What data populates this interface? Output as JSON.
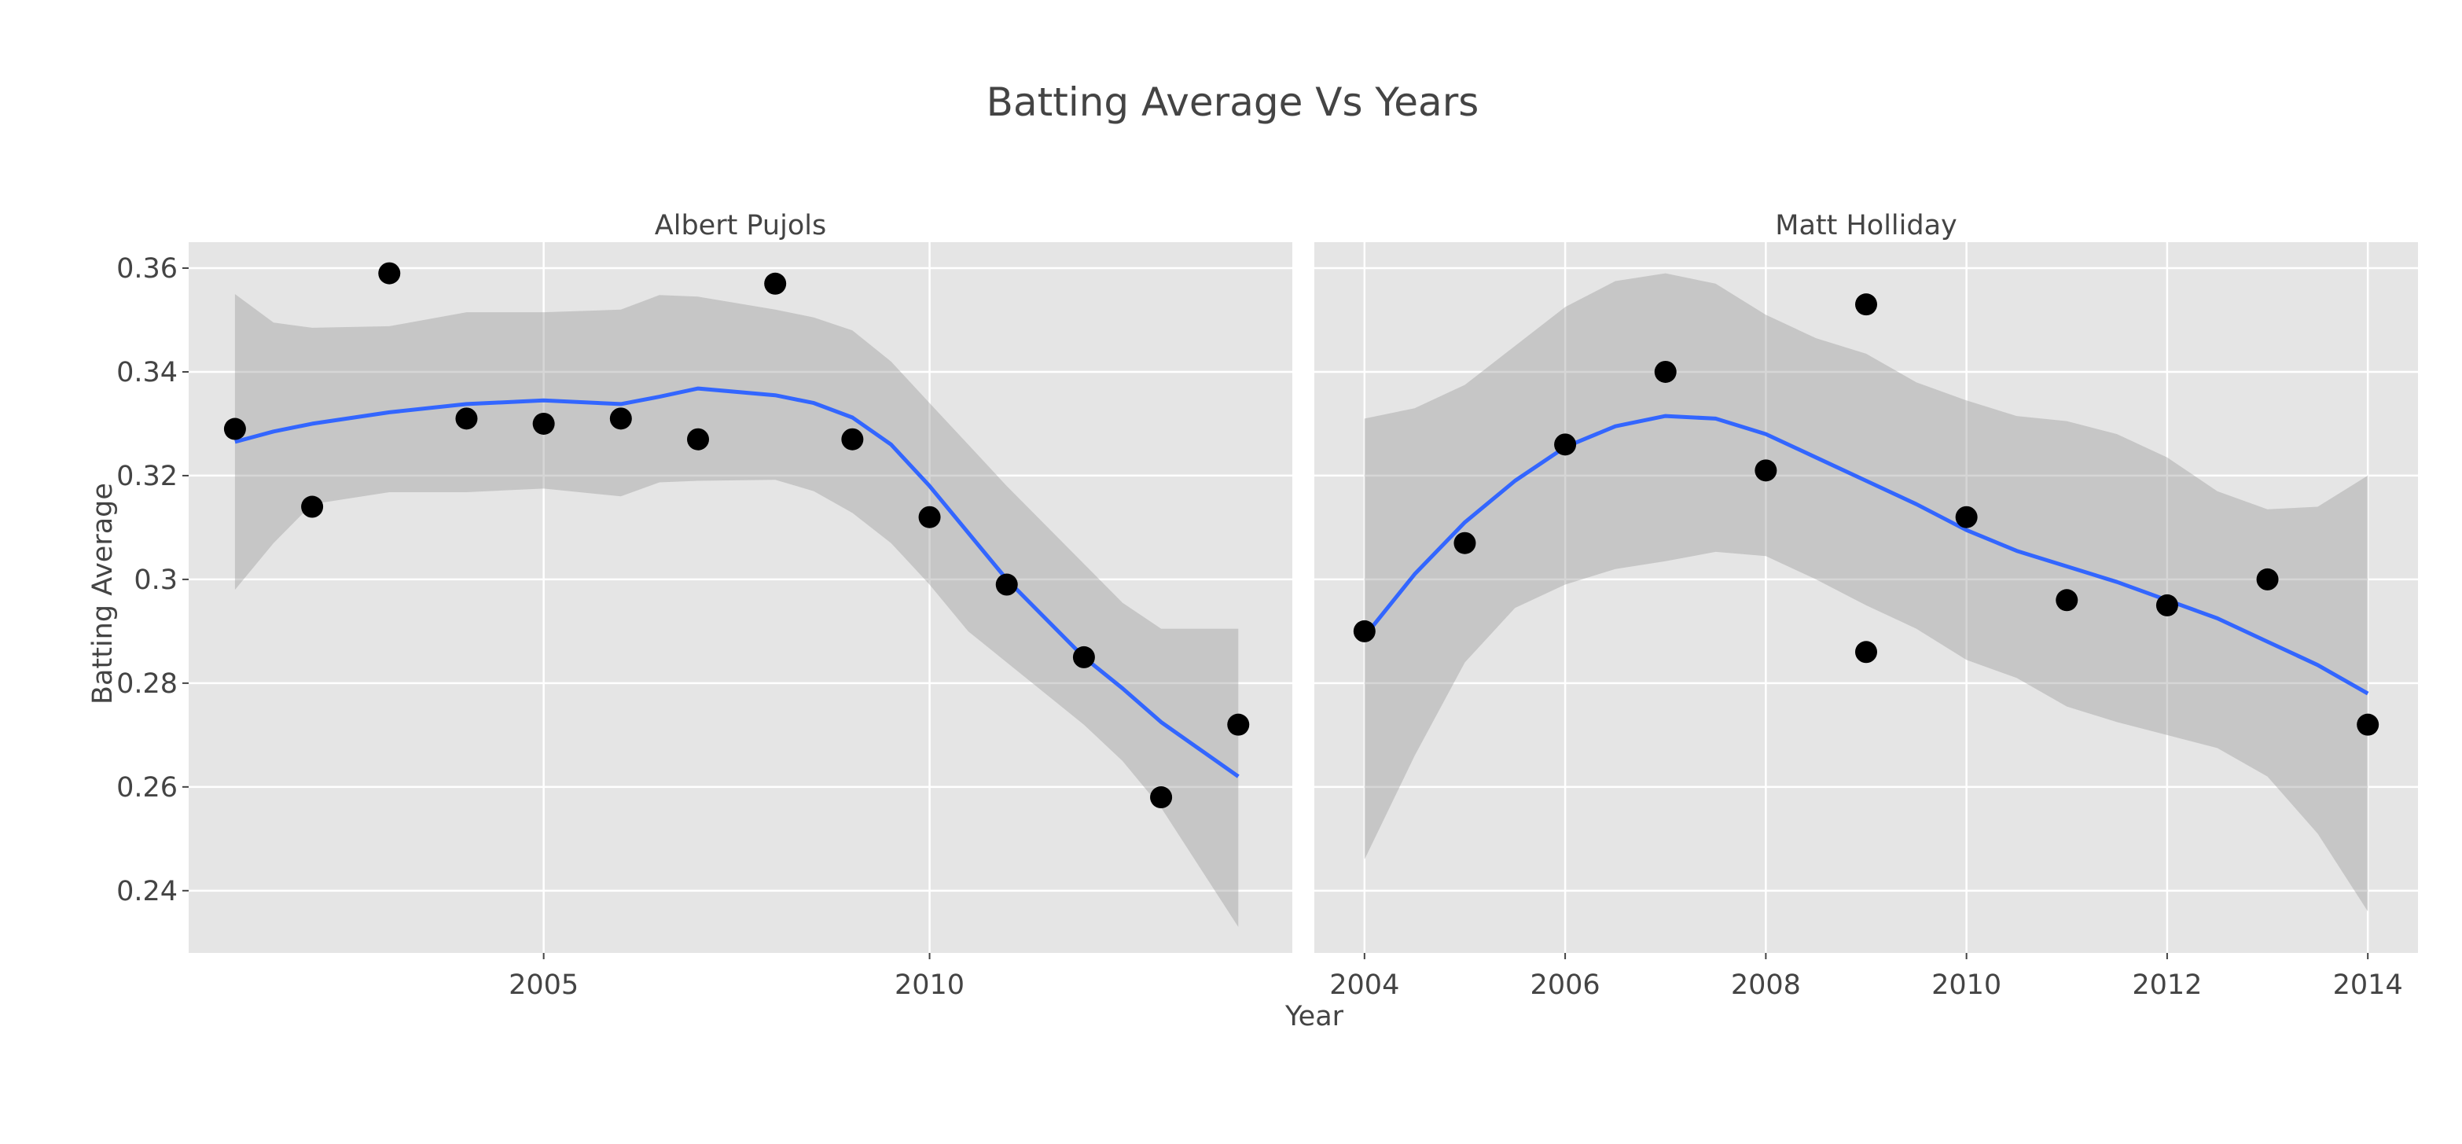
{
  "chart_data": {
    "type": "scatter",
    "title": "Batting Average Vs Years",
    "xlabel": "Year",
    "ylabel": "Batting Average",
    "ylim": [
      0.228,
      0.365
    ],
    "y_ticks": [
      0.24,
      0.26,
      0.28,
      0.3,
      0.32,
      0.34,
      0.36
    ],
    "y_tick_labels": [
      "0.24",
      "0.26",
      "0.28",
      "0.3",
      "0.32",
      "0.34",
      "0.36"
    ],
    "grid": true,
    "smoother": "loess with confidence band",
    "colors": {
      "panel_bg": "#e5e5e5",
      "grid": "#ffffff",
      "points": "#000000",
      "fit_line": "#3366ff",
      "band": "#999999"
    },
    "panels": [
      {
        "name": "Albert Pujols",
        "xlim": [
          2000.4,
          2014.7
        ],
        "x_ticks": [
          2005,
          2010
        ],
        "x_tick_labels": [
          "2005",
          "2010"
        ],
        "points": [
          {
            "x": 2001,
            "y": 0.329
          },
          {
            "x": 2002,
            "y": 0.314
          },
          {
            "x": 2003,
            "y": 0.359
          },
          {
            "x": 2004,
            "y": 0.331
          },
          {
            "x": 2005,
            "y": 0.33
          },
          {
            "x": 2006,
            "y": 0.331
          },
          {
            "x": 2007,
            "y": 0.327
          },
          {
            "x": 2008,
            "y": 0.357
          },
          {
            "x": 2009,
            "y": 0.327
          },
          {
            "x": 2010,
            "y": 0.312
          },
          {
            "x": 2011,
            "y": 0.299
          },
          {
            "x": 2012,
            "y": 0.285
          },
          {
            "x": 2013,
            "y": 0.258
          },
          {
            "x": 2014,
            "y": 0.272
          }
        ],
        "fit": {
          "x": [
            2001,
            2001.5,
            2002,
            2003,
            2004,
            2005,
            2006,
            2006.5,
            2007,
            2008,
            2008.5,
            2009,
            2009.5,
            2010,
            2010.5,
            2011,
            2012,
            2012.5,
            2013,
            2014
          ],
          "y": [
            0.3265,
            0.3285,
            0.33,
            0.3322,
            0.3338,
            0.3345,
            0.3338,
            0.3352,
            0.3368,
            0.3355,
            0.334,
            0.3312,
            0.326,
            0.318,
            0.309,
            0.3,
            0.285,
            0.279,
            0.2725,
            0.262
          ],
          "lower": [
            0.298,
            0.307,
            0.3145,
            0.3168,
            0.3168,
            0.3175,
            0.316,
            0.3187,
            0.319,
            0.3192,
            0.317,
            0.3128,
            0.307,
            0.299,
            0.29,
            0.284,
            0.272,
            0.265,
            0.256,
            0.233
          ],
          "upper": [
            0.355,
            0.3495,
            0.3485,
            0.3488,
            0.3515,
            0.3515,
            0.352,
            0.3548,
            0.3545,
            0.352,
            0.3505,
            0.348,
            0.342,
            0.334,
            0.326,
            0.318,
            0.303,
            0.2955,
            0.2905,
            0.2905
          ]
        }
      },
      {
        "name": "Matt Holliday",
        "xlim": [
          2003.5,
          2014.5
        ],
        "x_ticks": [
          2004,
          2006,
          2008,
          2010,
          2012,
          2014
        ],
        "x_tick_labels": [
          "2004",
          "2006",
          "2008",
          "2010",
          "2012",
          "2014"
        ],
        "points": [
          {
            "x": 2004,
            "y": 0.29
          },
          {
            "x": 2005,
            "y": 0.307
          },
          {
            "x": 2006,
            "y": 0.326
          },
          {
            "x": 2007,
            "y": 0.34
          },
          {
            "x": 2008,
            "y": 0.321
          },
          {
            "x": 2009,
            "y": 0.353
          },
          {
            "x": 2009,
            "y": 0.286
          },
          {
            "x": 2010,
            "y": 0.312
          },
          {
            "x": 2011,
            "y": 0.296
          },
          {
            "x": 2012,
            "y": 0.295
          },
          {
            "x": 2013,
            "y": 0.3
          },
          {
            "x": 2014,
            "y": 0.272
          }
        ],
        "fit": {
          "x": [
            2004,
            2004.5,
            2005,
            2005.5,
            2006,
            2006.5,
            2007,
            2007.5,
            2008,
            2008.5,
            2009,
            2009.5,
            2010,
            2010.5,
            2011,
            2011.5,
            2012,
            2012.5,
            2013,
            2013.5,
            2014
          ],
          "y": [
            0.289,
            0.301,
            0.311,
            0.319,
            0.3255,
            0.3295,
            0.3315,
            0.331,
            0.328,
            0.3235,
            0.319,
            0.3145,
            0.3095,
            0.3055,
            0.3025,
            0.2995,
            0.296,
            0.2925,
            0.288,
            0.2835,
            0.278
          ],
          "lower": [
            0.246,
            0.266,
            0.284,
            0.2945,
            0.299,
            0.302,
            0.3035,
            0.3053,
            0.3045,
            0.3,
            0.295,
            0.2905,
            0.2845,
            0.281,
            0.2755,
            0.2725,
            0.27,
            0.2675,
            0.262,
            0.251,
            0.236
          ],
          "upper": [
            0.331,
            0.333,
            0.3375,
            0.345,
            0.3525,
            0.3575,
            0.359,
            0.357,
            0.351,
            0.3465,
            0.3435,
            0.338,
            0.3345,
            0.3315,
            0.3305,
            0.328,
            0.3235,
            0.317,
            0.3135,
            0.314,
            0.32
          ]
        }
      }
    ]
  }
}
